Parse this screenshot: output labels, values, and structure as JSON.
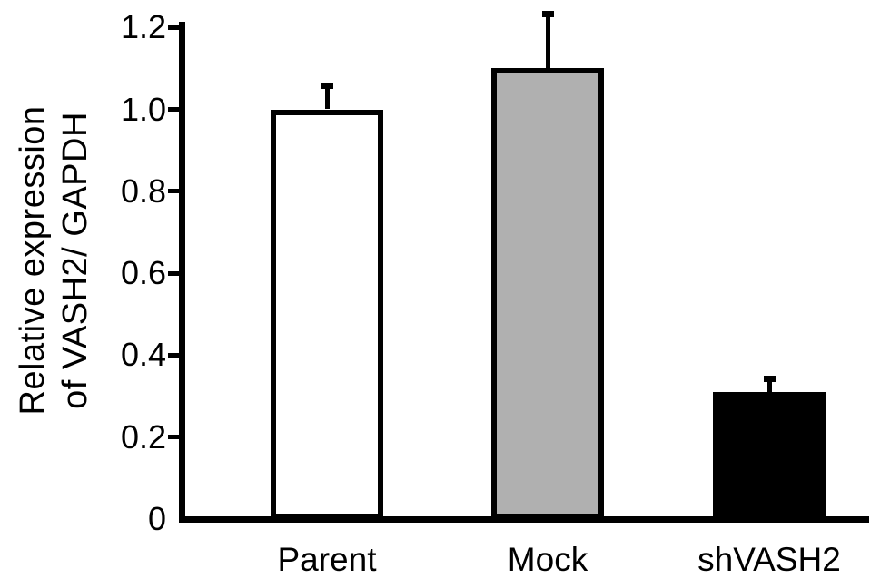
{
  "figure": {
    "background_color": "#ffffff",
    "text_color": "#000000"
  },
  "chart_data": {
    "type": "bar",
    "title": "",
    "xlabel": "",
    "ylabel": "Relative expression of VASH2/ GAPDH",
    "ylabel_lines": [
      "Relative expression",
      "of VASH2/ GAPDH"
    ],
    "categories": [
      "Parent",
      "Mock",
      "shVASH2"
    ],
    "values": [
      1.0,
      1.1,
      0.31
    ],
    "errors_plus": [
      0.065,
      0.14,
      0.04
    ],
    "bar_fill_colors": [
      "#ffffff",
      "#b0b0b0",
      "#000000"
    ],
    "bar_border_color": "#000000",
    "axis_color": "#000000",
    "ylim": [
      0,
      1.2
    ],
    "yticks": [
      0,
      0.2,
      0.4,
      0.6,
      0.8,
      1.0,
      1.2
    ],
    "ytick_labels": [
      "0",
      "0.2",
      "0.4",
      "0.6",
      "0.8",
      "1.0",
      "1.2"
    ],
    "grid": false,
    "legend_position": "none",
    "error_bar_style": "upper-only-with-cap"
  }
}
